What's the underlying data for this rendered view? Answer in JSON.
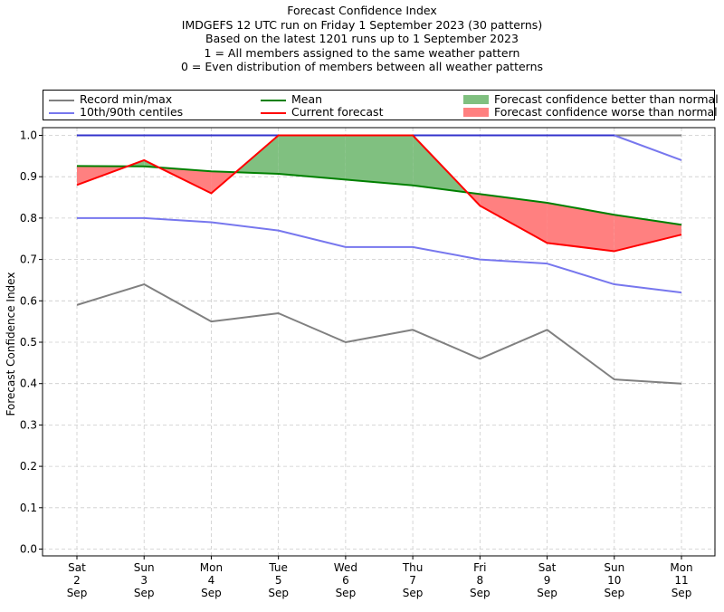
{
  "title_lines": [
    "Forecast Confidence Index",
    "IMDGEFS 12 UTC run on Friday 1 September 2023 (30 patterns)",
    "Based on the latest 1201 runs up to 1 September 2023",
    "1 = All members assigned to the same weather pattern",
    "0 = Even distribution of members between all weather patterns"
  ],
  "legend": {
    "record": "Record min/max",
    "centiles": "10th/90th centiles",
    "mean": "Mean",
    "current": "Current forecast",
    "better": "Forecast confidence better than normal",
    "worse": "Forecast confidence worse than normal"
  },
  "colors": {
    "record": "#808080",
    "centiles": "#7777ee",
    "mean": "#008000",
    "current": "#ff0000",
    "better": "#80c080",
    "worse": "#ff8080",
    "top_blue": "#3333cc"
  },
  "chart_data": {
    "type": "line",
    "title": "Forecast Confidence Index",
    "ylabel": "Forecast Confidence Index",
    "xlabel": "",
    "ylim": [
      0.0,
      1.0
    ],
    "yticks": [
      "0.0",
      "0.1",
      "0.2",
      "0.3",
      "0.4",
      "0.5",
      "0.6",
      "0.7",
      "0.8",
      "0.9",
      "1.0"
    ],
    "grid": true,
    "legend_position": "top",
    "categories": [
      [
        "Sat",
        "2",
        "Sep"
      ],
      [
        "Sun",
        "3",
        "Sep"
      ],
      [
        "Mon",
        "4",
        "Sep"
      ],
      [
        "Tue",
        "5",
        "Sep"
      ],
      [
        "Wed",
        "6",
        "Sep"
      ],
      [
        "Thu",
        "7",
        "Sep"
      ],
      [
        "Fri",
        "8",
        "Sep"
      ],
      [
        "Sat",
        "9",
        "Sep"
      ],
      [
        "Sun",
        "10",
        "Sep"
      ],
      [
        "Mon",
        "11",
        "Sep"
      ]
    ],
    "series": [
      {
        "name": "Record min/max",
        "key": "record_min",
        "values": [
          0.59,
          0.64,
          0.55,
          0.57,
          0.5,
          0.53,
          0.46,
          0.53,
          0.41,
          0.4
        ]
      },
      {
        "name": "Record min/max",
        "key": "record_max",
        "values": [
          1.0,
          1.0,
          1.0,
          1.0,
          1.0,
          1.0,
          1.0,
          1.0,
          1.0,
          1.0
        ]
      },
      {
        "name": "10th/90th centiles",
        "key": "p10",
        "values": [
          0.8,
          0.8,
          0.79,
          0.77,
          0.73,
          0.73,
          0.7,
          0.69,
          0.64,
          0.62
        ]
      },
      {
        "name": "10th/90th centiles",
        "key": "p90",
        "values": [
          1.0,
          1.0,
          1.0,
          1.0,
          1.0,
          1.0,
          1.0,
          1.0,
          1.0,
          0.94
        ]
      },
      {
        "name": "Mean",
        "key": "mean",
        "values": [
          0.926,
          0.925,
          0.913,
          0.907,
          0.893,
          0.879,
          0.858,
          0.837,
          0.808,
          0.784
        ]
      },
      {
        "name": "Current forecast",
        "key": "current",
        "values": [
          0.88,
          0.94,
          0.86,
          1.0,
          1.0,
          1.0,
          0.83,
          0.74,
          0.72,
          0.76
        ]
      }
    ]
  }
}
